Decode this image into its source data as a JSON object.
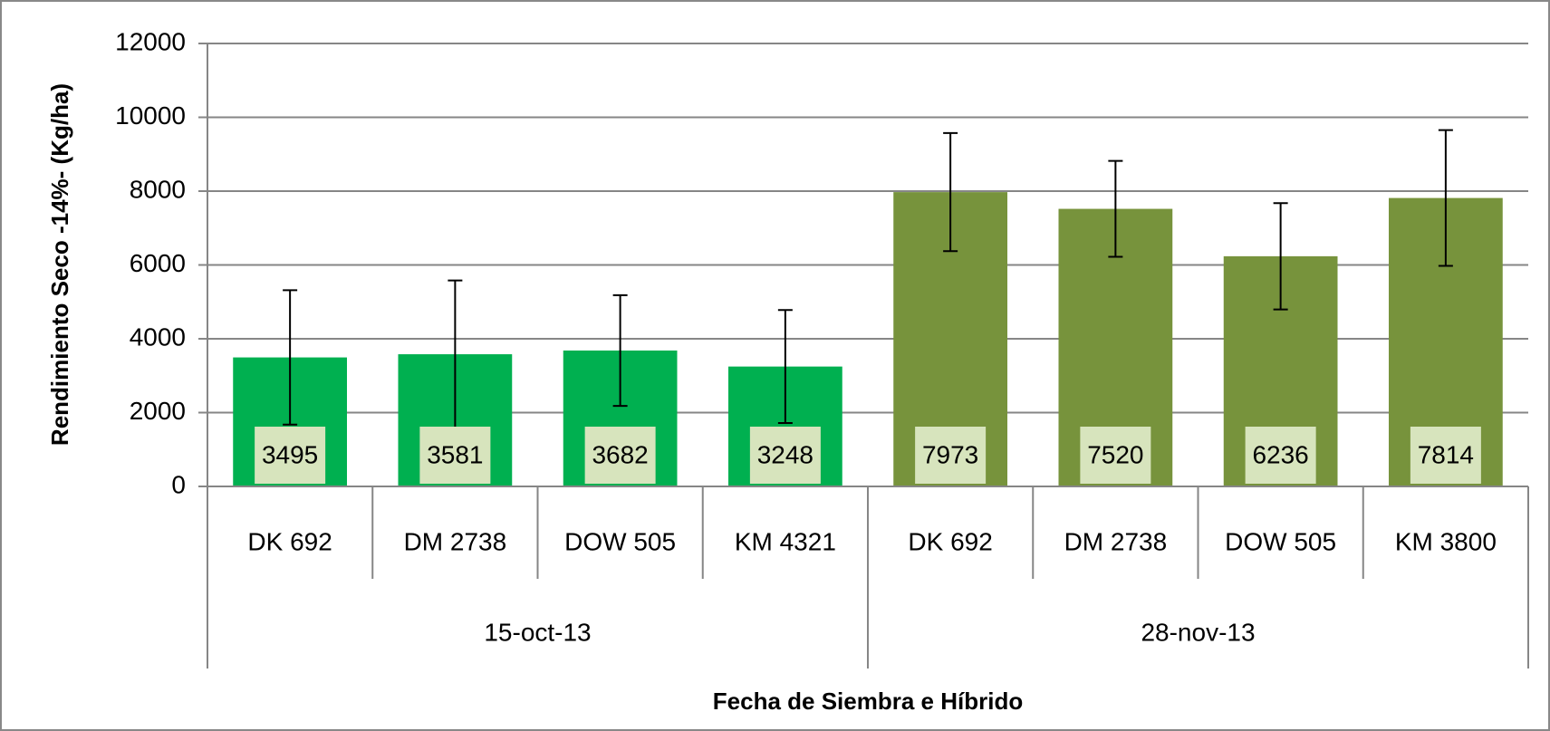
{
  "chart_data": {
    "type": "bar",
    "y_label": "Rendimiento Seco -14%- (Kg/ha)",
    "x_label": "Fecha de Siembra e Híbrido",
    "ylim": [
      0,
      12000
    ],
    "yticks": [
      0,
      2000,
      4000,
      6000,
      8000,
      10000,
      12000
    ],
    "grid": true,
    "groups": [
      {
        "name": "15-oct-13",
        "color": "#00b050",
        "label_box_color": "#d7e4bd",
        "categories": [
          "DK 692",
          "DM 2738",
          "DOW 505",
          "KM 4321"
        ],
        "values": [
          3495,
          3581,
          3682,
          3248
        ],
        "errors": [
          1820,
          2000,
          1500,
          1530
        ]
      },
      {
        "name": "28-nov-13",
        "color": "#77933c",
        "label_box_color": "#d7e4bd",
        "categories": [
          "DK 692",
          "DM 2738",
          "DOW 505",
          "KM 3800"
        ],
        "values": [
          7973,
          7520,
          6236,
          7814
        ],
        "errors": [
          1600,
          1300,
          1440,
          1840
        ]
      }
    ]
  }
}
